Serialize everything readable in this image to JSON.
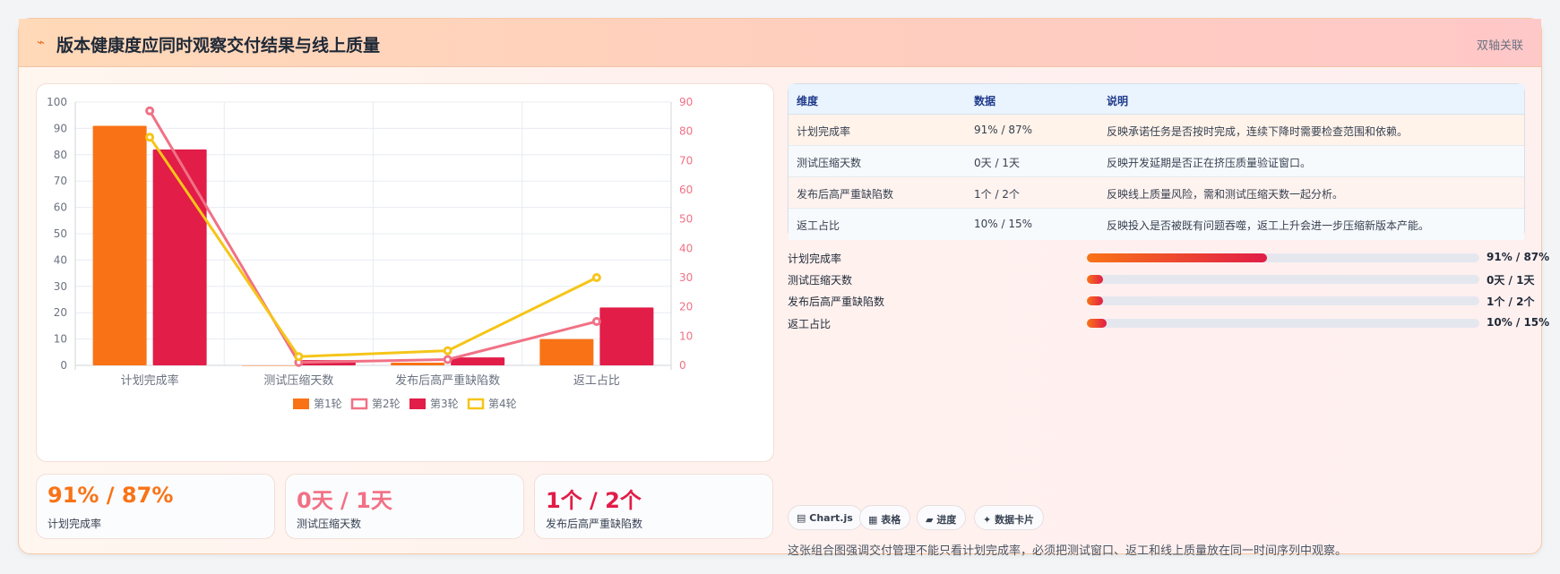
{
  "header": {
    "title": "版本健康度应同时观察交付结果与线上质量",
    "title_icon": "lightning-icon",
    "tag": "双轴关联"
  },
  "chart_data": {
    "type": "bar",
    "categories": [
      "计划完成率",
      "测试压缩天数",
      "发布后高严重缺陷数",
      "返工占比"
    ],
    "series": [
      {
        "name": "第1轮",
        "kind": "bar",
        "axis": "left",
        "color": "#f97316",
        "values": [
          91,
          0,
          1,
          10
        ]
      },
      {
        "name": "第2轮",
        "kind": "line",
        "axis": "right",
        "color": "#f17185",
        "values": [
          87,
          1,
          2,
          15
        ]
      },
      {
        "name": "第3轮",
        "kind": "bar",
        "axis": "left",
        "color": "#e11d48",
        "values": [
          82,
          2,
          3,
          22
        ]
      },
      {
        "name": "第4轮",
        "kind": "line",
        "axis": "right",
        "color": "#f5c518",
        "values": [
          78,
          3,
          5,
          30
        ]
      }
    ],
    "y_left": {
      "min": 0,
      "max": 100,
      "ticks": [
        "0",
        "10",
        "20",
        "30",
        "40",
        "50",
        "60",
        "70",
        "80",
        "90",
        "100"
      ]
    },
    "y_right": {
      "min": 0,
      "max": 90,
      "ticks": [
        "0",
        "10",
        "20",
        "30",
        "40",
        "50",
        "60",
        "70",
        "80",
        "90"
      ]
    },
    "grid": true,
    "legend": "bottom"
  },
  "kpis": [
    {
      "value": "91% / 87%",
      "label": "计划完成率",
      "color": "#f97316"
    },
    {
      "value": "0天 / 1天",
      "label": "测试压缩天数",
      "color": "#f17185"
    },
    {
      "value": "1个 / 2个",
      "label": "发布后高严重缺陷数",
      "color": "#e11d48"
    }
  ],
  "table": {
    "headers": [
      "维度",
      "数据",
      "说明"
    ],
    "rows": [
      {
        "dim": "计划完成率",
        "data": "91% / 87%",
        "desc": "反映承诺任务是否按时完成，连续下降时需要检查范围和依赖。",
        "bg": "#fff3ea"
      },
      {
        "dim": "测试压缩天数",
        "data": "0天 / 1天",
        "desc": "反映开发延期是否正在挤压质量验证窗口。",
        "bg": "#f7fafd"
      },
      {
        "dim": "发布后高严重缺陷数",
        "data": "1个 / 2个",
        "desc": "反映线上质量风险，需和测试压缩天数一起分析。",
        "bg": "#fff3ef"
      },
      {
        "dim": "返工占比",
        "data": "10% / 15%",
        "desc": "反映投入是否被既有问题吞噬，返工上升会进一步压缩新版本产能。",
        "bg": "#f7fafd"
      }
    ]
  },
  "progress": [
    {
      "label": "计划完成率",
      "value": "91% / 87%",
      "fill": 0.46
    },
    {
      "label": "测试压缩天数",
      "value": "0天 / 1天",
      "fill": 0.04
    },
    {
      "label": "发布后高严重缺陷数",
      "value": "1个 / 2个",
      "fill": 0.04
    },
    {
      "label": "返工占比",
      "value": "10% / 15%",
      "fill": 0.05
    }
  ],
  "pills": [
    {
      "icon": "chart-icon",
      "glyph": "▤",
      "label": "Chart.js"
    },
    {
      "icon": "table-icon",
      "glyph": "▦",
      "label": "表格"
    },
    {
      "icon": "progress-icon",
      "glyph": "▰",
      "label": "进度"
    },
    {
      "icon": "sparkle-icon",
      "glyph": "✦",
      "label": "数据卡片"
    }
  ],
  "footnote": "这张组合图强调交付管理不能只看计划完成率，必须把测试窗口、返工和线上质量放在同一时间序列中观察。"
}
